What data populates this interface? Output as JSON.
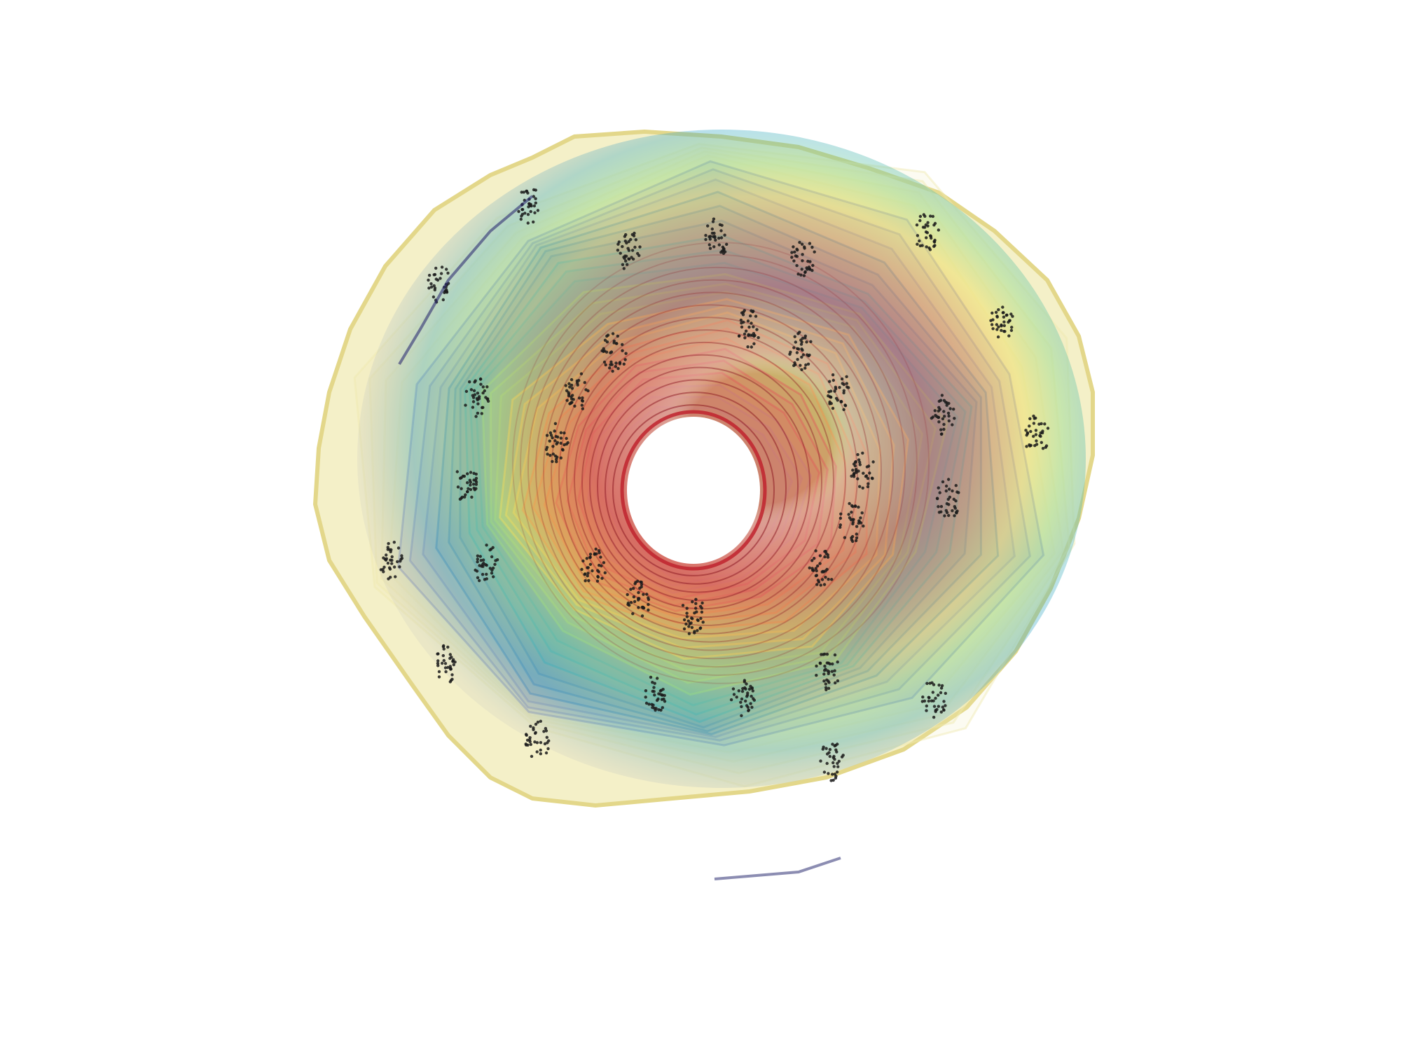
{
  "scene": {
    "background": "#ffffff",
    "shell_colors": {
      "outer_edge": "#efe9b0",
      "outer_band": "#8f95b8",
      "blue_band": "#4f88b8",
      "cyan_band": "#32a6c6",
      "green_band": "#86d98c",
      "yellow_band": "#efe05e",
      "orange_band": "#f2924e",
      "red_band": "#df5c5c",
      "inner_band": "#c97a7a",
      "core_hole": "#ffffff",
      "dot_color": "#1b1b1b",
      "rim_dark": "#2e2f73"
    },
    "shell_layer_count": 28,
    "dot_cluster_count": 34
  }
}
